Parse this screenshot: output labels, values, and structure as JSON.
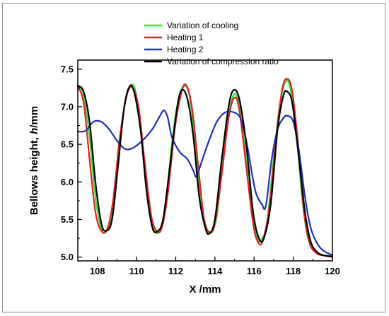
{
  "chart_data": {
    "type": "line",
    "title": "",
    "xlabel": "X /mm",
    "ylabel_prefix": "Bellows height, ",
    "ylabel_var": "h",
    "ylabel_suffix": "/mm",
    "xlim": [
      107,
      120
    ],
    "ylim": [
      4.95,
      7.62
    ],
    "xticks": [
      108,
      110,
      112,
      114,
      116,
      118,
      120
    ],
    "yticks": [
      5.0,
      5.5,
      6.0,
      6.5,
      7.0,
      7.5
    ],
    "xtick_labels": [
      "108",
      "110",
      "112",
      "114",
      "116",
      "118",
      "120"
    ],
    "ytick_labels": [
      "5.0",
      "5.5",
      "6.0",
      "6.5",
      "7.0",
      "7.5"
    ],
    "grid": false,
    "legend_position": "top-right",
    "series": [
      {
        "name": "Variation of cooling",
        "color": "#33dd33",
        "points": [
          [
            107,
            7.28
          ],
          [
            107.3,
            7.15
          ],
          [
            107.6,
            6.6
          ],
          [
            107.9,
            5.8
          ],
          [
            108.2,
            5.38
          ],
          [
            108.45,
            5.34
          ],
          [
            108.75,
            5.55
          ],
          [
            109.1,
            6.4
          ],
          [
            109.4,
            7.05
          ],
          [
            109.7,
            7.27
          ],
          [
            109.95,
            7.2
          ],
          [
            110.3,
            6.5
          ],
          [
            110.6,
            5.7
          ],
          [
            110.9,
            5.37
          ],
          [
            111.15,
            5.34
          ],
          [
            111.45,
            5.6
          ],
          [
            111.8,
            6.5
          ],
          [
            112.1,
            7.05
          ],
          [
            112.4,
            7.27
          ],
          [
            112.7,
            7.15
          ],
          [
            113.0,
            6.5
          ],
          [
            113.3,
            5.7
          ],
          [
            113.6,
            5.37
          ],
          [
            113.8,
            5.33
          ],
          [
            114.1,
            5.55
          ],
          [
            114.45,
            6.4
          ],
          [
            114.75,
            6.95
          ],
          [
            115.0,
            7.17
          ],
          [
            115.25,
            7.0
          ],
          [
            115.6,
            6.3
          ],
          [
            115.9,
            5.6
          ],
          [
            116.15,
            5.27
          ],
          [
            116.35,
            5.22
          ],
          [
            116.65,
            5.45
          ],
          [
            117.0,
            6.3
          ],
          [
            117.3,
            7.0
          ],
          [
            117.6,
            7.33
          ],
          [
            117.85,
            7.25
          ],
          [
            118.15,
            6.7
          ],
          [
            118.45,
            5.8
          ],
          [
            118.75,
            5.25
          ],
          [
            119.1,
            5.08
          ],
          [
            119.5,
            5.03
          ],
          [
            120,
            5.01
          ]
        ]
      },
      {
        "name": "Heating 1",
        "color": "#dd2222",
        "points": [
          [
            107,
            7.27
          ],
          [
            107.3,
            7.05
          ],
          [
            107.6,
            6.3
          ],
          [
            107.9,
            5.6
          ],
          [
            108.2,
            5.35
          ],
          [
            108.5,
            5.37
          ],
          [
            108.8,
            5.75
          ],
          [
            109.15,
            6.6
          ],
          [
            109.5,
            7.15
          ],
          [
            109.8,
            7.25
          ],
          [
            110.1,
            7.0
          ],
          [
            110.4,
            6.3
          ],
          [
            110.75,
            5.55
          ],
          [
            111.05,
            5.34
          ],
          [
            111.3,
            5.4
          ],
          [
            111.6,
            5.85
          ],
          [
            111.95,
            6.7
          ],
          [
            112.3,
            7.2
          ],
          [
            112.55,
            7.28
          ],
          [
            112.85,
            6.95
          ],
          [
            113.15,
            6.2
          ],
          [
            113.45,
            5.5
          ],
          [
            113.75,
            5.33
          ],
          [
            114.0,
            5.45
          ],
          [
            114.35,
            6.1
          ],
          [
            114.7,
            6.85
          ],
          [
            115.0,
            7.12
          ],
          [
            115.25,
            6.95
          ],
          [
            115.6,
            6.2
          ],
          [
            115.95,
            5.45
          ],
          [
            116.2,
            5.2
          ],
          [
            116.45,
            5.22
          ],
          [
            116.8,
            5.7
          ],
          [
            117.15,
            6.65
          ],
          [
            117.45,
            7.25
          ],
          [
            117.7,
            7.37
          ],
          [
            117.95,
            7.2
          ],
          [
            118.25,
            6.5
          ],
          [
            118.55,
            5.6
          ],
          [
            118.85,
            5.18
          ],
          [
            119.2,
            5.05
          ],
          [
            119.6,
            5.02
          ],
          [
            120,
            5.0
          ]
        ]
      },
      {
        "name": "Heating 2",
        "color": "#1f2fb8",
        "points": [
          [
            107,
            6.67
          ],
          [
            107.4,
            6.68
          ],
          [
            107.8,
            6.8
          ],
          [
            108.2,
            6.8
          ],
          [
            108.6,
            6.7
          ],
          [
            109.0,
            6.55
          ],
          [
            109.4,
            6.44
          ],
          [
            109.8,
            6.45
          ],
          [
            110.3,
            6.55
          ],
          [
            110.8,
            6.7
          ],
          [
            111.2,
            6.88
          ],
          [
            111.4,
            6.95
          ],
          [
            111.6,
            6.85
          ],
          [
            111.8,
            6.6
          ],
          [
            112.2,
            6.4
          ],
          [
            112.6,
            6.3
          ],
          [
            112.9,
            6.15
          ],
          [
            113.05,
            6.07
          ],
          [
            113.3,
            6.25
          ],
          [
            113.7,
            6.55
          ],
          [
            114.1,
            6.8
          ],
          [
            114.5,
            6.92
          ],
          [
            114.9,
            6.93
          ],
          [
            115.3,
            6.85
          ],
          [
            115.6,
            6.55
          ],
          [
            115.9,
            6.1
          ],
          [
            116.1,
            5.85
          ],
          [
            116.4,
            5.7
          ],
          [
            116.6,
            5.68
          ],
          [
            116.9,
            6.3
          ],
          [
            117.2,
            6.7
          ],
          [
            117.5,
            6.85
          ],
          [
            117.7,
            6.88
          ],
          [
            118.0,
            6.8
          ],
          [
            118.3,
            6.4
          ],
          [
            118.6,
            5.8
          ],
          [
            118.9,
            5.38
          ],
          [
            119.3,
            5.15
          ],
          [
            119.7,
            5.06
          ],
          [
            120,
            5.03
          ]
        ]
      },
      {
        "name": "Variation of compression ratio",
        "color": "#000000",
        "points": [
          [
            107,
            7.28
          ],
          [
            107.3,
            7.2
          ],
          [
            107.6,
            6.8
          ],
          [
            107.9,
            6.0
          ],
          [
            108.2,
            5.45
          ],
          [
            108.45,
            5.35
          ],
          [
            108.75,
            5.5
          ],
          [
            109.05,
            6.2
          ],
          [
            109.35,
            6.95
          ],
          [
            109.6,
            7.25
          ],
          [
            109.85,
            7.22
          ],
          [
            110.2,
            6.7
          ],
          [
            110.5,
            5.9
          ],
          [
            110.8,
            5.4
          ],
          [
            111.05,
            5.34
          ],
          [
            111.35,
            5.5
          ],
          [
            111.7,
            6.2
          ],
          [
            112.05,
            6.95
          ],
          [
            112.3,
            7.22
          ],
          [
            112.6,
            7.1
          ],
          [
            112.9,
            6.6
          ],
          [
            113.2,
            5.8
          ],
          [
            113.5,
            5.4
          ],
          [
            113.7,
            5.31
          ],
          [
            114.0,
            5.5
          ],
          [
            114.35,
            6.3
          ],
          [
            114.7,
            7.0
          ],
          [
            114.95,
            7.22
          ],
          [
            115.25,
            7.1
          ],
          [
            115.6,
            6.5
          ],
          [
            115.95,
            5.6
          ],
          [
            116.25,
            5.25
          ],
          [
            116.5,
            5.25
          ],
          [
            116.85,
            5.7
          ],
          [
            117.2,
            6.7
          ],
          [
            117.5,
            7.15
          ],
          [
            117.7,
            7.2
          ],
          [
            117.95,
            7.05
          ],
          [
            118.25,
            6.4
          ],
          [
            118.6,
            5.6
          ],
          [
            118.9,
            5.2
          ],
          [
            119.25,
            5.06
          ],
          [
            119.6,
            5.02
          ],
          [
            120,
            5.01
          ]
        ]
      }
    ]
  }
}
